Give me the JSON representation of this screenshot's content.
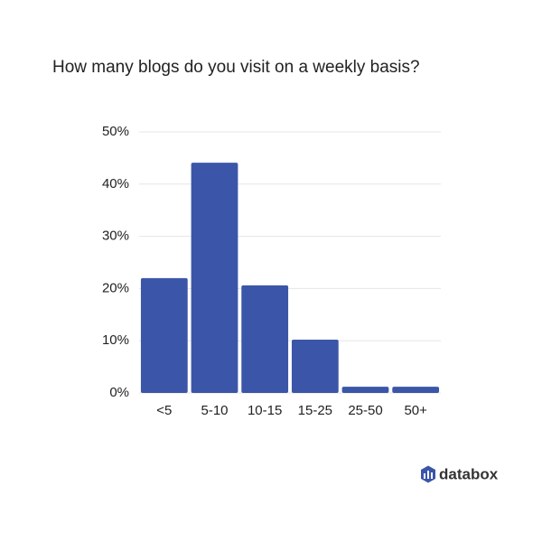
{
  "chart_data": {
    "type": "bar",
    "title": "How many blogs do you visit on a weekly basis?",
    "categories": [
      "<5",
      "5-10",
      "10-15",
      "15-25",
      "25-50",
      "50+"
    ],
    "values": [
      22,
      44.1,
      20.6,
      10.2,
      1.2,
      1.2
    ],
    "color": "#3b56a8",
    "ylim": [
      0,
      50
    ],
    "yticks": [
      {
        "value": 0,
        "label": "0%"
      },
      {
        "value": 10,
        "label": "10%"
      },
      {
        "value": 20,
        "label": "20%"
      },
      {
        "value": 30,
        "label": "30%"
      },
      {
        "value": 40,
        "label": "40%"
      },
      {
        "value": 50,
        "label": "50%"
      }
    ],
    "grid": true
  },
  "brand": "databox"
}
